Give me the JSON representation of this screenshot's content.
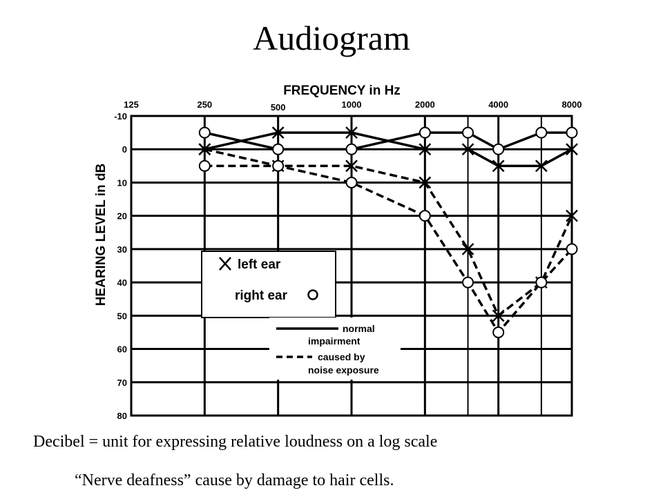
{
  "slide": {
    "title": "Audiogram",
    "caption_1": "Decibel = unit for expressing relative loudness on a log scale",
    "caption_2": "“Nerve deafness”  cause by damage to hair cells."
  },
  "chart_data": {
    "type": "line",
    "xlabel": "FREQUENCY in Hz",
    "ylabel": "HEARING LEVEL in dB",
    "x_ticks_top": [
      "125",
      "250",
      "1000",
      "2000",
      "4000",
      "8000"
    ],
    "x_ticks_bottom": [
      "500"
    ],
    "x_tick_values": [
      125,
      250,
      500,
      1000,
      2000,
      4000,
      8000
    ],
    "x_tick_labels": [
      "125",
      "250",
      "500",
      "1000",
      "2000",
      "4000",
      "8000"
    ],
    "x_scale": "log",
    "x_range": [
      125,
      8000
    ],
    "y_ticks": [
      "-10",
      "0",
      "10",
      "20",
      "30",
      "40",
      "50",
      "60",
      "70",
      "80"
    ],
    "y_range": [
      -10,
      80
    ],
    "y_inverted": true,
    "grid": true,
    "x": [
      250,
      500,
      1000,
      2000,
      3000,
      4000,
      6000,
      8000
    ],
    "series": [
      {
        "ear": "left",
        "marker": "x",
        "style": "solid",
        "values": [
          0,
          -5,
          -5,
          0,
          0,
          5,
          5,
          0
        ]
      },
      {
        "ear": "right",
        "marker": "o",
        "style": "solid",
        "values": [
          -5,
          0,
          0,
          -5,
          -5,
          0,
          -5,
          -5
        ]
      },
      {
        "ear": "left",
        "marker": "x",
        "style": "dashed",
        "values": [
          0,
          5,
          5,
          10,
          30,
          50,
          40,
          20
        ]
      },
      {
        "ear": "right",
        "marker": "o",
        "style": "dashed",
        "values": [
          5,
          5,
          10,
          20,
          40,
          55,
          40,
          30
        ]
      }
    ],
    "legend": {
      "marker_entries": [
        {
          "symbol": "X",
          "label": "left ear"
        },
        {
          "symbol": "O",
          "label": "right ear"
        }
      ],
      "line_entries": [
        {
          "style": "solid",
          "label_lines": [
            "normal",
            "impairment"
          ]
        },
        {
          "style": "dashed",
          "label_lines": [
            "caused by",
            "noise exposure"
          ]
        }
      ]
    }
  }
}
